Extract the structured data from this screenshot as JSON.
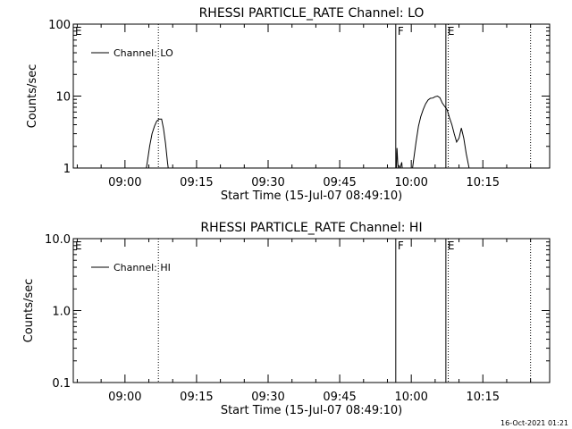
{
  "footer": {
    "timestamp": "16-Oct-2021 01:21"
  },
  "chart_data": [
    {
      "type": "line",
      "title": "RHESSI PARTICLE_RATE Channel: LO",
      "xlabel": "Start Time (15-Jul-07 08:49:10)",
      "ylabel": "Counts/sec",
      "y_scale": "log",
      "ylim": [
        1,
        100
      ],
      "xlim": [
        "08:49:10",
        "10:29:00"
      ],
      "x_ticks": [
        "09:00",
        "09:15",
        "09:30",
        "09:45",
        "10:00",
        "10:15"
      ],
      "y_ticks": [
        "1",
        "10",
        "100"
      ],
      "grid": false,
      "legend": {
        "position": "top-left",
        "entries": [
          "Channel: LO"
        ]
      },
      "markers": [
        {
          "label": "E",
          "time": "08:49:10",
          "style": "none"
        },
        {
          "label": "",
          "time": "09:07:00",
          "style": "dotted"
        },
        {
          "label": "F",
          "time": "09:56:45",
          "style": "solid"
        },
        {
          "label": "E",
          "time": "10:07:15",
          "style": "solid"
        },
        {
          "label": "",
          "time": "10:07:45",
          "style": "dotted"
        },
        {
          "label": "",
          "time": "10:25:00",
          "style": "dotted"
        }
      ],
      "series": [
        {
          "name": "Channel: LO",
          "segments": [
            [
              [
                "09:04:15",
                0.8
              ],
              [
                "09:04:40",
                1.2
              ],
              [
                "09:05:10",
                2.0
              ],
              [
                "09:05:40",
                3.0
              ],
              [
                "09:06:10",
                3.8
              ],
              [
                "09:06:40",
                4.5
              ],
              [
                "09:07:10",
                4.8
              ],
              [
                "09:07:40",
                4.8
              ],
              [
                "09:08:05",
                3.5
              ],
              [
                "09:08:30",
                2.2
              ],
              [
                "09:08:55",
                1.2
              ],
              [
                "09:09:15",
                0.8
              ]
            ],
            [
              [
                "09:56:50",
                0.9
              ],
              [
                "09:57:00",
                1.9
              ],
              [
                "09:57:10",
                1.2
              ],
              [
                "09:57:20",
                0.85
              ]
            ],
            [
              [
                "09:57:20",
                1.1
              ],
              [
                "09:57:40",
                1.0
              ],
              [
                "09:58:00",
                1.2
              ],
              [
                "09:58:10",
                0.9
              ]
            ],
            [
              [
                "10:00:10",
                0.9
              ],
              [
                "10:00:30",
                1.3
              ],
              [
                "10:01:00",
                2.3
              ],
              [
                "10:01:30",
                3.8
              ],
              [
                "10:02:00",
                5.2
              ],
              [
                "10:02:30",
                6.5
              ],
              [
                "10:03:00",
                7.8
              ],
              [
                "10:03:30",
                8.8
              ],
              [
                "10:04:00",
                9.3
              ],
              [
                "10:04:30",
                9.4
              ],
              [
                "10:05:00",
                9.8
              ],
              [
                "10:05:30",
                10.0
              ],
              [
                "10:06:00",
                9.5
              ],
              [
                "10:06:30",
                8.0
              ],
              [
                "10:07:00",
                7.2
              ],
              [
                "10:07:30",
                6.5
              ],
              [
                "10:08:00",
                5.0
              ],
              [
                "10:08:30",
                4.0
              ],
              [
                "10:09:00",
                3.0
              ],
              [
                "10:09:30",
                2.3
              ],
              [
                "10:10:00",
                2.6
              ],
              [
                "10:10:30",
                3.6
              ],
              [
                "10:11:00",
                2.6
              ],
              [
                "10:11:30",
                1.6
              ],
              [
                "10:12:00",
                1.1
              ],
              [
                "10:12:20",
                0.85
              ]
            ]
          ]
        }
      ]
    },
    {
      "type": "line",
      "title": "RHESSI PARTICLE_RATE Channel: HI",
      "xlabel": "Start Time (15-Jul-07 08:49:10)",
      "ylabel": "Counts/sec",
      "y_scale": "log",
      "ylim": [
        0.1,
        10
      ],
      "xlim": [
        "08:49:10",
        "10:29:00"
      ],
      "x_ticks": [
        "09:00",
        "09:15",
        "09:30",
        "09:45",
        "10:00",
        "10:15"
      ],
      "y_ticks": [
        "0.1",
        "1.0",
        "10.0"
      ],
      "grid": false,
      "legend": {
        "position": "top-left",
        "entries": [
          "Channel: HI"
        ]
      },
      "markers": [
        {
          "label": "E",
          "time": "08:49:10",
          "style": "none"
        },
        {
          "label": "",
          "time": "09:07:00",
          "style": "dotted"
        },
        {
          "label": "F",
          "time": "09:56:45",
          "style": "solid"
        },
        {
          "label": "E",
          "time": "10:07:15",
          "style": "solid"
        },
        {
          "label": "",
          "time": "10:07:45",
          "style": "dotted"
        },
        {
          "label": "",
          "time": "10:25:00",
          "style": "dotted"
        }
      ],
      "series": [
        {
          "name": "Channel: HI",
          "segments": []
        }
      ]
    }
  ]
}
